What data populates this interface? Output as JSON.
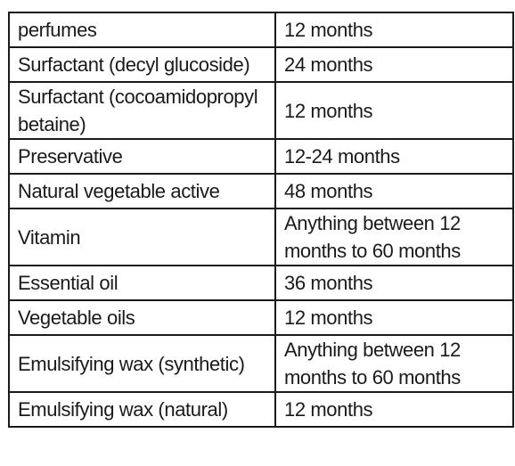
{
  "table": {
    "rows": [
      {
        "ingredient": "perfumes",
        "shelf_life": "12 months"
      },
      {
        "ingredient": "Surfactant (decyl glucoside)",
        "shelf_life": "24 months"
      },
      {
        "ingredient": "Surfactant (cocoamidopropyl betaine)",
        "shelf_life": "12 months"
      },
      {
        "ingredient": "Preservative",
        "shelf_life": "12-24 months"
      },
      {
        "ingredient": "Natural vegetable active",
        "shelf_life": "48 months"
      },
      {
        "ingredient": "Vitamin",
        "shelf_life": "Anything between 12 months to 60 months"
      },
      {
        "ingredient": "Essential oil",
        "shelf_life": "36 months"
      },
      {
        "ingredient": "Vegetable oils",
        "shelf_life": "12 months"
      },
      {
        "ingredient": "Emulsifying wax (synthetic)",
        "shelf_life": "Anything between 12 months to 60 months"
      },
      {
        "ingredient": "Emulsifying wax (natural)",
        "shelf_life": "12 months"
      }
    ]
  }
}
